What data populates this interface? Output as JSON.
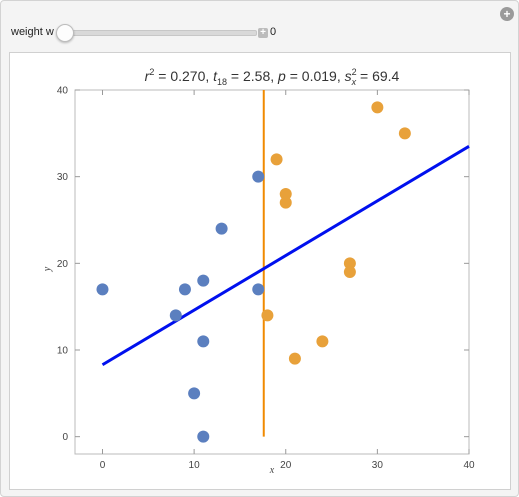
{
  "controls": {
    "weight_label": "weight w",
    "weight_value": "0",
    "weight_fraction": 0.0
  },
  "colors": {
    "blue_points": "#5b7fbf",
    "orange_points": "#e8a13a",
    "fit_line": "#0010ee",
    "divider": "#f08a00"
  },
  "icons": {
    "corner": "plus-circle-icon",
    "slider_step": "plus-square-icon"
  },
  "chart_data": {
    "type": "scatter",
    "title_parts": {
      "r_sym": "r",
      "r_sup": "2",
      "r_val": " = 0.270, ",
      "t_sym": "t",
      "t_sub": "18",
      "t_val": " = 2.58, ",
      "p_sym": "p",
      "p_val": " = 0.019, ",
      "s_sym": "s",
      "s_sup": "2",
      "s_sub": "x",
      "s_val": " = 69.4"
    },
    "xlabel": "x",
    "ylabel": "y",
    "xlim": [
      -3,
      40
    ],
    "ylim": [
      -2,
      40
    ],
    "xticks": [
      0,
      10,
      20,
      30,
      40
    ],
    "yticks": [
      0,
      10,
      20,
      30,
      40
    ],
    "series": [
      {
        "points": [
          [
            0,
            17
          ],
          [
            8,
            14
          ],
          [
            9,
            17
          ],
          [
            10,
            5
          ],
          [
            11,
            0
          ],
          [
            11,
            11
          ],
          [
            11,
            18
          ],
          [
            13,
            24
          ],
          [
            17,
            30
          ],
          [
            17,
            17
          ]
        ]
      },
      {
        "points": [
          [
            18,
            14
          ],
          [
            19,
            32
          ],
          [
            20,
            28
          ],
          [
            20,
            27
          ],
          [
            21,
            9
          ],
          [
            24,
            11
          ],
          [
            27,
            20
          ],
          [
            27,
            19
          ],
          [
            30,
            38
          ],
          [
            33,
            35
          ]
        ]
      }
    ],
    "fit_line": {
      "x": [
        0,
        40
      ],
      "y": [
        8.3,
        33.5
      ]
    },
    "divider_x": 17.6,
    "divider_y_range": [
      0,
      40
    ]
  }
}
